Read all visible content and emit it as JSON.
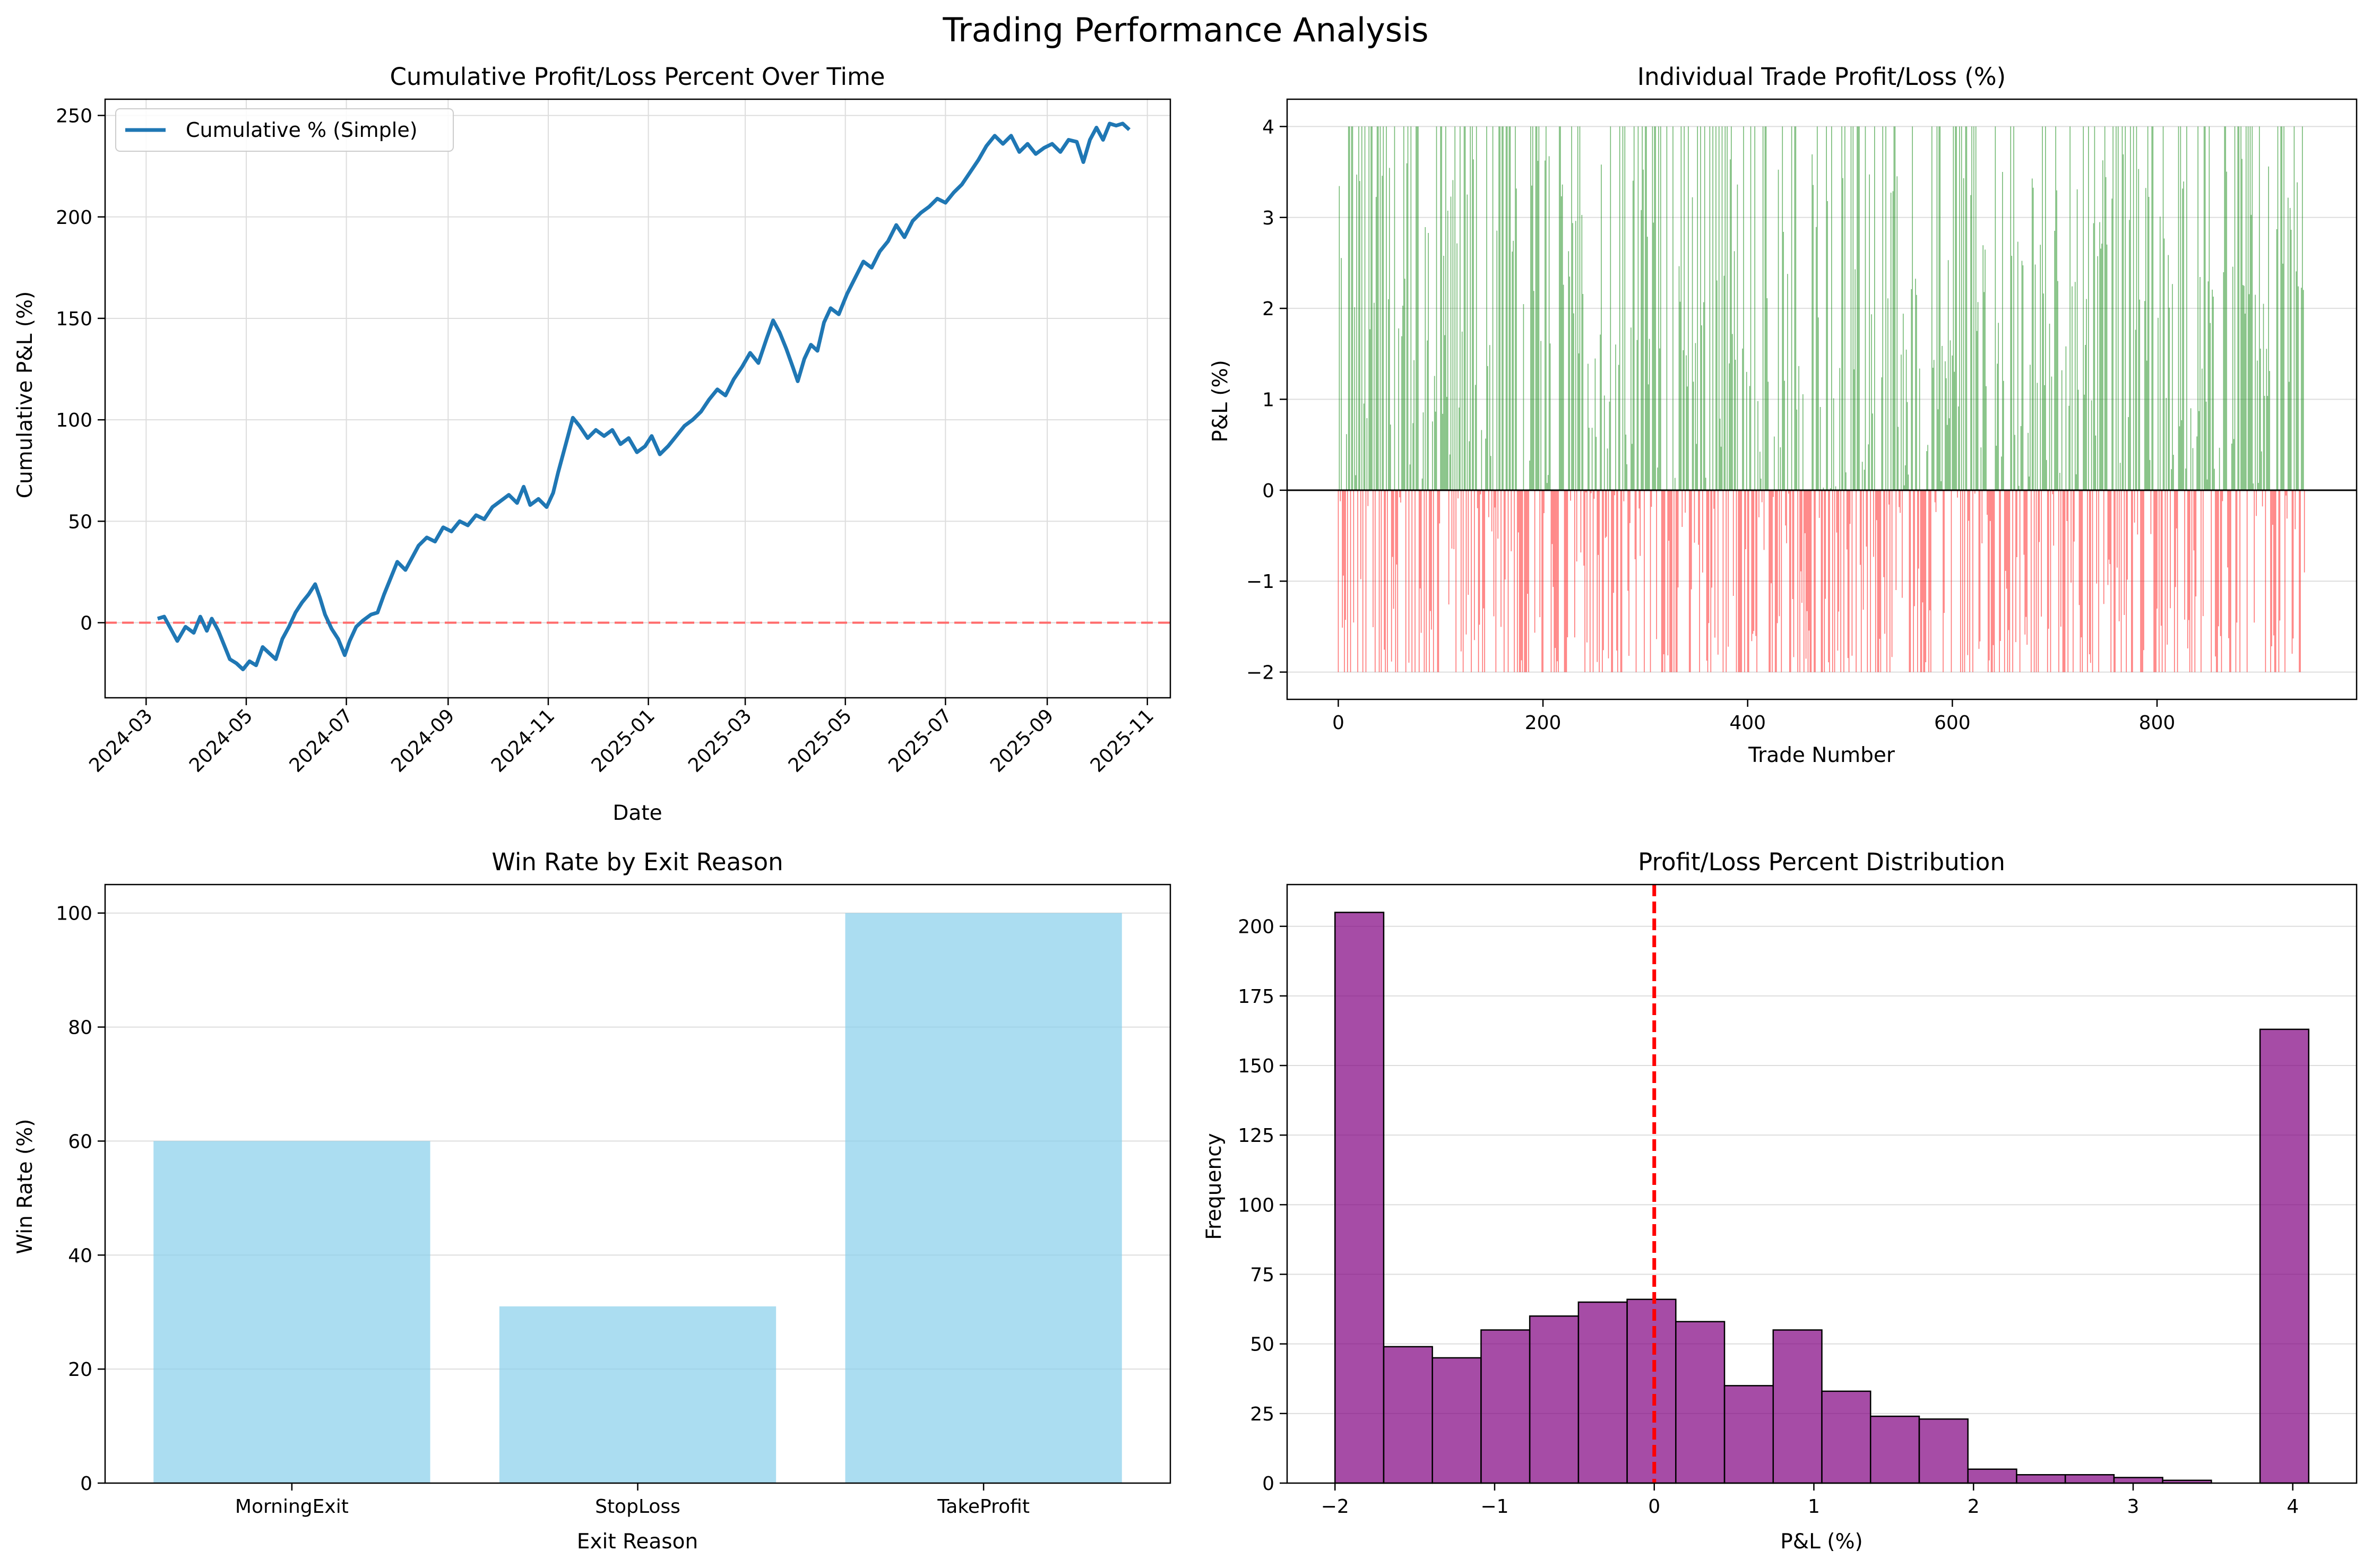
{
  "suptitle": "Trading Performance Analysis",
  "chart_data": [
    {
      "type": "line",
      "title": "Cumulative Profit/Loss Percent Over Time",
      "xlabel": "Date",
      "ylabel": "Cumulative P&L (%)",
      "legend": {
        "placement": "top-left",
        "entries": [
          "Cumulative % (Simple)"
        ]
      },
      "xticks": [
        "2024-03",
        "2024-05",
        "2024-07",
        "2024-09",
        "2024-11",
        "2025-01",
        "2025-03",
        "2025-05",
        "2025-07",
        "2025-09",
        "2025-11"
      ],
      "yticks": [
        "0",
        "50",
        "100",
        "150",
        "200",
        "250"
      ],
      "xlim": [
        "2024-02-05",
        "2025-11-15"
      ],
      "ylim": [
        -37,
        258
      ],
      "grid": true,
      "reference_line": {
        "y": 0,
        "style": "dashed",
        "color": "#ff6b6b"
      },
      "series": [
        {
          "name": "Cumulative % (Simple)",
          "color": "#1f77b4",
          "points": [
            [
              "2024-03-08",
              2
            ],
            [
              "2024-03-12",
              3
            ],
            [
              "2024-03-16",
              -3
            ],
            [
              "2024-03-20",
              -9
            ],
            [
              "2024-03-25",
              -2
            ],
            [
              "2024-03-30",
              -5
            ],
            [
              "2024-04-03",
              3
            ],
            [
              "2024-04-07",
              -4
            ],
            [
              "2024-04-10",
              2
            ],
            [
              "2024-04-14",
              -4
            ],
            [
              "2024-04-17",
              -10
            ],
            [
              "2024-04-21",
              -18
            ],
            [
              "2024-04-25",
              -20
            ],
            [
              "2024-04-29",
              -23
            ],
            [
              "2024-05-03",
              -19
            ],
            [
              "2024-05-07",
              -21
            ],
            [
              "2024-05-11",
              -12
            ],
            [
              "2024-05-15",
              -15
            ],
            [
              "2024-05-19",
              -18
            ],
            [
              "2024-05-23",
              -8
            ],
            [
              "2024-05-27",
              -2
            ],
            [
              "2024-05-31",
              5
            ],
            [
              "2024-06-04",
              10
            ],
            [
              "2024-06-08",
              14
            ],
            [
              "2024-06-12",
              19
            ],
            [
              "2024-06-15",
              12
            ],
            [
              "2024-06-18",
              4
            ],
            [
              "2024-06-22",
              -3
            ],
            [
              "2024-06-26",
              -8
            ],
            [
              "2024-06-30",
              -16
            ],
            [
              "2024-07-03",
              -9
            ],
            [
              "2024-07-07",
              -2
            ],
            [
              "2024-07-11",
              1
            ],
            [
              "2024-07-16",
              4
            ],
            [
              "2024-07-20",
              5
            ],
            [
              "2024-07-24",
              14
            ],
            [
              "2024-07-28",
              22
            ],
            [
              "2024-08-01",
              30
            ],
            [
              "2024-08-06",
              26
            ],
            [
              "2024-08-10",
              32
            ],
            [
              "2024-08-14",
              38
            ],
            [
              "2024-08-19",
              42
            ],
            [
              "2024-08-24",
              40
            ],
            [
              "2024-08-29",
              47
            ],
            [
              "2024-09-03",
              45
            ],
            [
              "2024-09-08",
              50
            ],
            [
              "2024-09-13",
              48
            ],
            [
              "2024-09-18",
              53
            ],
            [
              "2024-09-23",
              51
            ],
            [
              "2024-09-28",
              57
            ],
            [
              "2024-10-03",
              60
            ],
            [
              "2024-10-08",
              63
            ],
            [
              "2024-10-13",
              59
            ],
            [
              "2024-10-17",
              67
            ],
            [
              "2024-10-21",
              58
            ],
            [
              "2024-10-26",
              61
            ],
            [
              "2024-10-31",
              57
            ],
            [
              "2024-11-04",
              64
            ],
            [
              "2024-11-07",
              74
            ],
            [
              "2024-11-10",
              83
            ],
            [
              "2024-11-13",
              92
            ],
            [
              "2024-11-16",
              101
            ],
            [
              "2024-11-20",
              97
            ],
            [
              "2024-11-25",
              91
            ],
            [
              "2024-11-30",
              95
            ],
            [
              "2024-12-05",
              92
            ],
            [
              "2024-12-10",
              95
            ],
            [
              "2024-12-15",
              88
            ],
            [
              "2024-12-20",
              91
            ],
            [
              "2024-12-25",
              84
            ],
            [
              "2024-12-30",
              87
            ],
            [
              "2025-01-03",
              92
            ],
            [
              "2025-01-08",
              83
            ],
            [
              "2025-01-13",
              87
            ],
            [
              "2025-01-18",
              92
            ],
            [
              "2025-01-23",
              97
            ],
            [
              "2025-01-28",
              100
            ],
            [
              "2025-02-02",
              104
            ],
            [
              "2025-02-07",
              110
            ],
            [
              "2025-02-12",
              115
            ],
            [
              "2025-02-17",
              112
            ],
            [
              "2025-02-22",
              120
            ],
            [
              "2025-02-27",
              126
            ],
            [
              "2025-03-04",
              133
            ],
            [
              "2025-03-09",
              128
            ],
            [
              "2025-03-14",
              140
            ],
            [
              "2025-03-18",
              149
            ],
            [
              "2025-03-22",
              143
            ],
            [
              "2025-03-26",
              135
            ],
            [
              "2025-03-30",
              126
            ],
            [
              "2025-04-02",
              119
            ],
            [
              "2025-04-06",
              130
            ],
            [
              "2025-04-10",
              137
            ],
            [
              "2025-04-14",
              134
            ],
            [
              "2025-04-18",
              148
            ],
            [
              "2025-04-22",
              155
            ],
            [
              "2025-04-27",
              152
            ],
            [
              "2025-05-02",
              162
            ],
            [
              "2025-05-07",
              170
            ],
            [
              "2025-05-12",
              178
            ],
            [
              "2025-05-17",
              175
            ],
            [
              "2025-05-22",
              183
            ],
            [
              "2025-05-27",
              188
            ],
            [
              "2025-06-01",
              196
            ],
            [
              "2025-06-06",
              190
            ],
            [
              "2025-06-11",
              198
            ],
            [
              "2025-06-16",
              202
            ],
            [
              "2025-06-21",
              205
            ],
            [
              "2025-06-26",
              209
            ],
            [
              "2025-07-01",
              207
            ],
            [
              "2025-07-06",
              212
            ],
            [
              "2025-07-11",
              216
            ],
            [
              "2025-07-16",
              222
            ],
            [
              "2025-07-21",
              228
            ],
            [
              "2025-07-26",
              235
            ],
            [
              "2025-07-31",
              240
            ],
            [
              "2025-08-05",
              236
            ],
            [
              "2025-08-10",
              240
            ],
            [
              "2025-08-15",
              232
            ],
            [
              "2025-08-20",
              236
            ],
            [
              "2025-08-25",
              231
            ],
            [
              "2025-08-30",
              234
            ],
            [
              "2025-09-04",
              236
            ],
            [
              "2025-09-09",
              232
            ],
            [
              "2025-09-14",
              238
            ],
            [
              "2025-09-19",
              237
            ],
            [
              "2025-09-23",
              227
            ],
            [
              "2025-09-27",
              238
            ],
            [
              "2025-10-01",
              244
            ],
            [
              "2025-10-05",
              238
            ],
            [
              "2025-10-09",
              246
            ],
            [
              "2025-10-13",
              245
            ],
            [
              "2025-10-17",
              246
            ],
            [
              "2025-10-21",
              243
            ]
          ]
        }
      ]
    },
    {
      "type": "bar",
      "title": "Individual Trade Profit/Loss (%)",
      "xlabel": "Trade Number",
      "ylabel": "P&L (%)",
      "xticks": [
        "0",
        "200",
        "400",
        "600",
        "800"
      ],
      "yticks": [
        "−2",
        "−1",
        "0",
        "1",
        "2",
        "3",
        "4"
      ],
      "xlim": [
        -50,
        995
      ],
      "ylim": [
        -2.3,
        4.3
      ],
      "grid": true,
      "n_trades": 945,
      "positive_color": "#008000",
      "negative_color": "#ff0000",
      "reference_line": {
        "y": 0,
        "style": "solid",
        "color": "#000000"
      },
      "value_cap_max": 4,
      "value_cap_min": -2
    },
    {
      "type": "bar",
      "title": "Win Rate by Exit Reason",
      "xlabel": "Exit Reason",
      "ylabel": "Win Rate (%)",
      "categories": [
        "MorningExit",
        "StopLoss",
        "TakeProfit"
      ],
      "values": [
        60,
        31,
        100
      ],
      "yticks": [
        "0",
        "20",
        "40",
        "60",
        "80",
        "100"
      ],
      "ylim": [
        0,
        105
      ],
      "grid": true,
      "color": "#87ceeb"
    },
    {
      "type": "bar",
      "title": "Profit/Loss Percent Distribution",
      "xlabel": "P&L (%)",
      "ylabel": "Frequency",
      "bin_edges": [
        -2.0,
        -1.695,
        -1.39,
        -1.085,
        -0.78,
        -0.475,
        -0.17,
        0.135,
        0.44,
        0.745,
        1.05,
        1.355,
        1.66,
        1.965,
        2.27,
        2.575,
        2.88,
        3.185,
        3.49,
        3.795,
        4.1
      ],
      "values": [
        205,
        49,
        45,
        55,
        60,
        65,
        66,
        58,
        35,
        55,
        33,
        24,
        23,
        5,
        3,
        3,
        2,
        1,
        0,
        163
      ],
      "xticks": [
        "−2",
        "−1",
        "0",
        "1",
        "2",
        "3",
        "4"
      ],
      "yticks": [
        "0",
        "25",
        "50",
        "75",
        "100",
        "125",
        "150",
        "175",
        "200"
      ],
      "xlim": [
        -2.3,
        4.4
      ],
      "ylim": [
        0,
        215
      ],
      "grid": true,
      "color": "#800080",
      "reference_line": {
        "x": 0,
        "style": "dashed",
        "color": "#ff0000"
      }
    }
  ]
}
